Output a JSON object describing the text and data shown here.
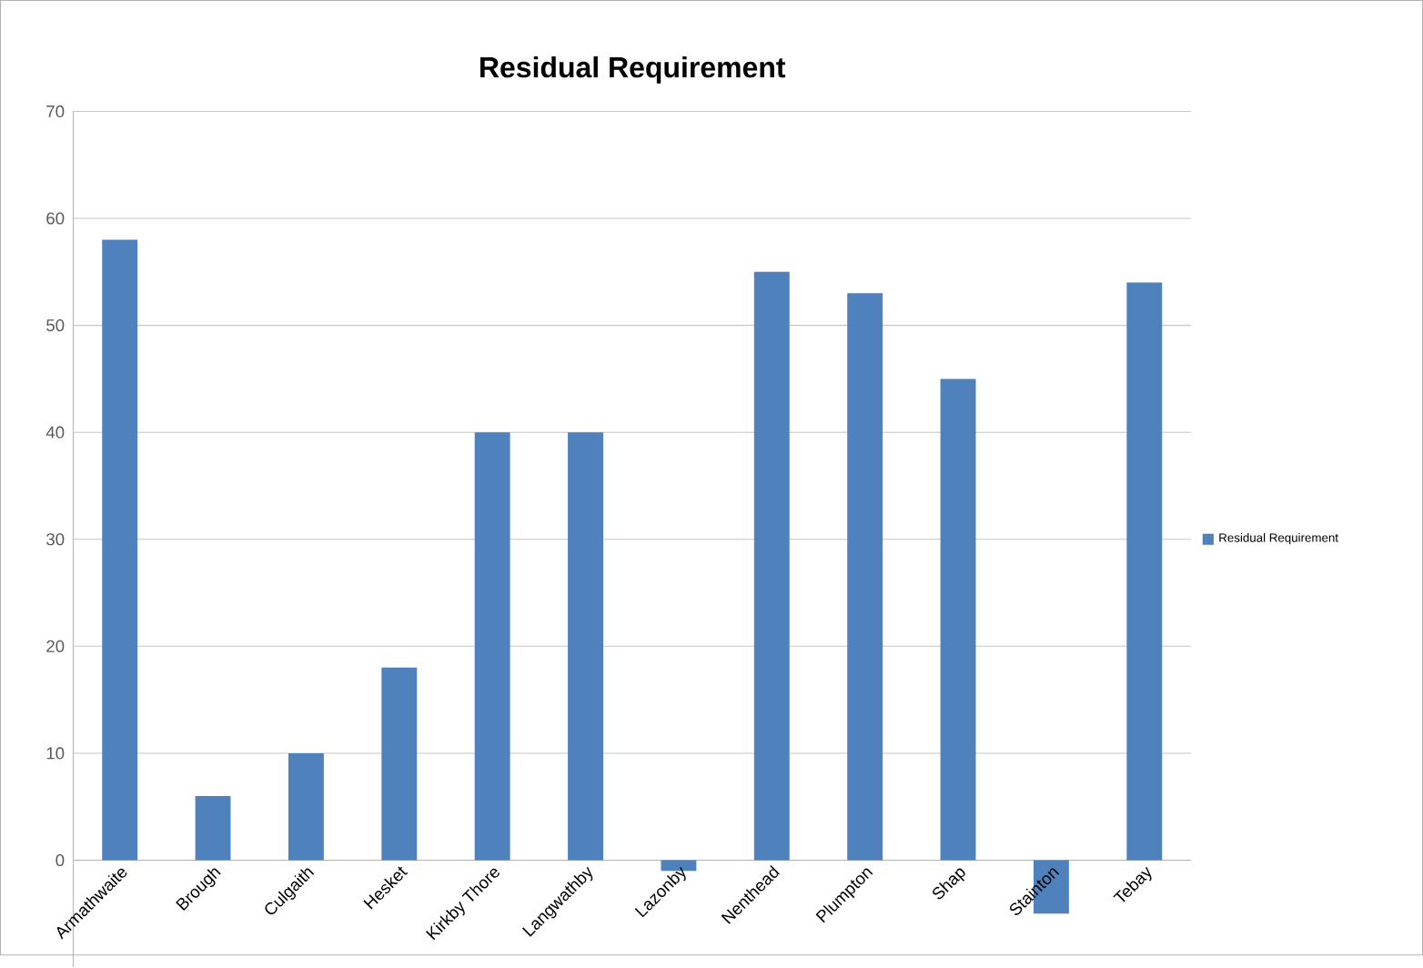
{
  "chart_data": {
    "type": "bar",
    "title": "Residual Requirement",
    "categories": [
      "Armathwaite",
      "Brough",
      "Culgaith",
      "Hesket",
      "Kirkby Thore",
      "Langwathby",
      "Lazonby",
      "Nenthead",
      "Plumpton",
      "Shap",
      "Stainton",
      "Tebay"
    ],
    "series": [
      {
        "name": "Residual Requirement",
        "color": "#4f81bd",
        "values": [
          58,
          6,
          10,
          18,
          40,
          40,
          -1,
          55,
          53,
          45,
          -5,
          54
        ]
      }
    ],
    "ylim": [
      -10,
      70
    ],
    "yticks": [
      0,
      10,
      20,
      30,
      40,
      50,
      60,
      70
    ],
    "grid": "y",
    "legend": "right"
  }
}
